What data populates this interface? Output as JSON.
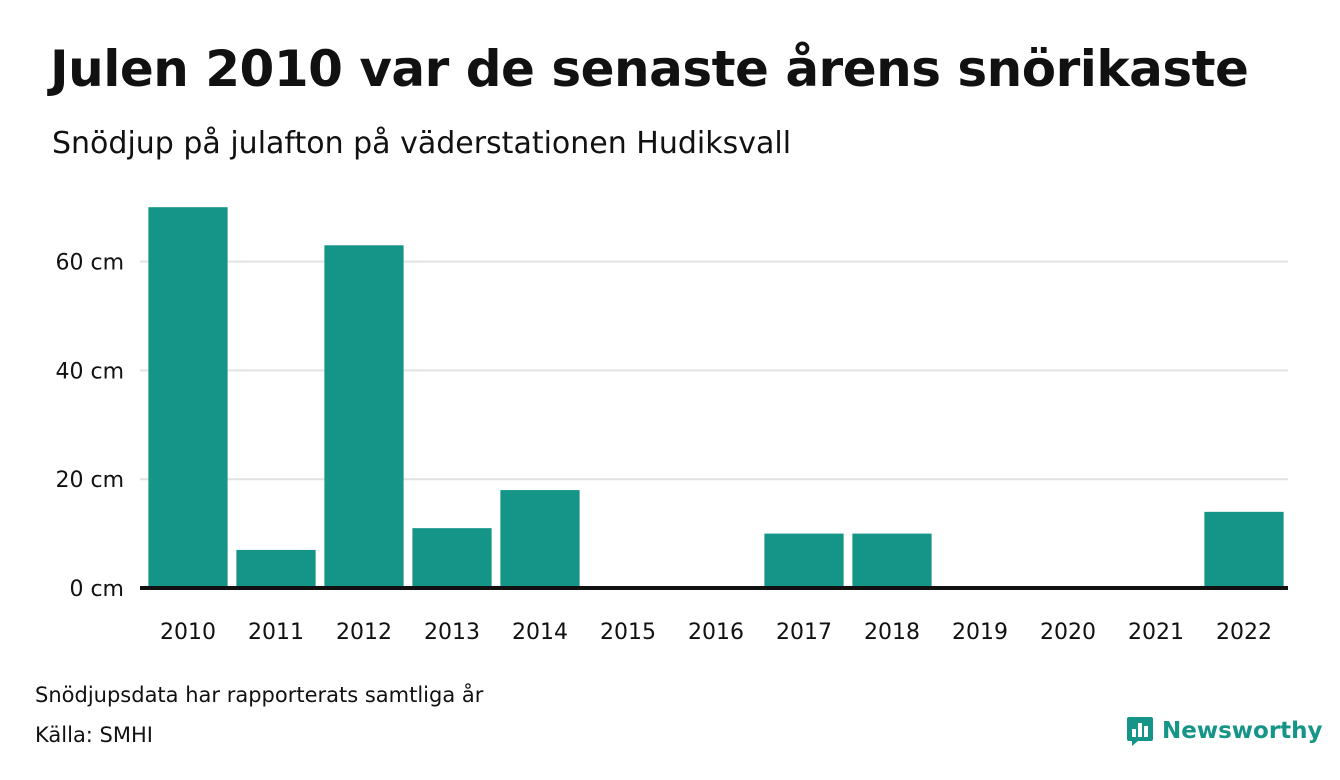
{
  "header": {
    "title": "Julen 2010 var de senaste årens snörikaste",
    "subtitle": "Snödjup på julafton på väderstationen Hudiksvall"
  },
  "footer": {
    "note": "Snödjupsdata har rapporterats samtliga år",
    "source": "Källa: SMHI",
    "brand": "Newsworthy"
  },
  "colors": {
    "bar": "#159488",
    "grid": "#e2e2e2",
    "baseline": "#111111",
    "brand": "#159488"
  },
  "icons": {
    "brand_logo": "bar-chart-speech-bubble-icon"
  },
  "chart_data": {
    "type": "bar",
    "categories": [
      "2010",
      "2011",
      "2012",
      "2013",
      "2014",
      "2015",
      "2016",
      "2017",
      "2018",
      "2019",
      "2020",
      "2021",
      "2022"
    ],
    "values": [
      70,
      7,
      63,
      11,
      18,
      0,
      0,
      10,
      10,
      0,
      0,
      0,
      14
    ],
    "title": "Julen 2010 var de senaste årens snörikaste",
    "subtitle": "Snödjup på julafton på väderstationen Hudiksvall",
    "xlabel": "",
    "ylabel": "",
    "unit": "cm",
    "yticks": [
      0,
      20,
      40,
      60
    ],
    "ytick_labels": [
      "0 cm",
      "20 cm",
      "40 cm",
      "60 cm"
    ],
    "ylim": [
      0,
      70
    ],
    "grid": true,
    "legend": "none"
  }
}
